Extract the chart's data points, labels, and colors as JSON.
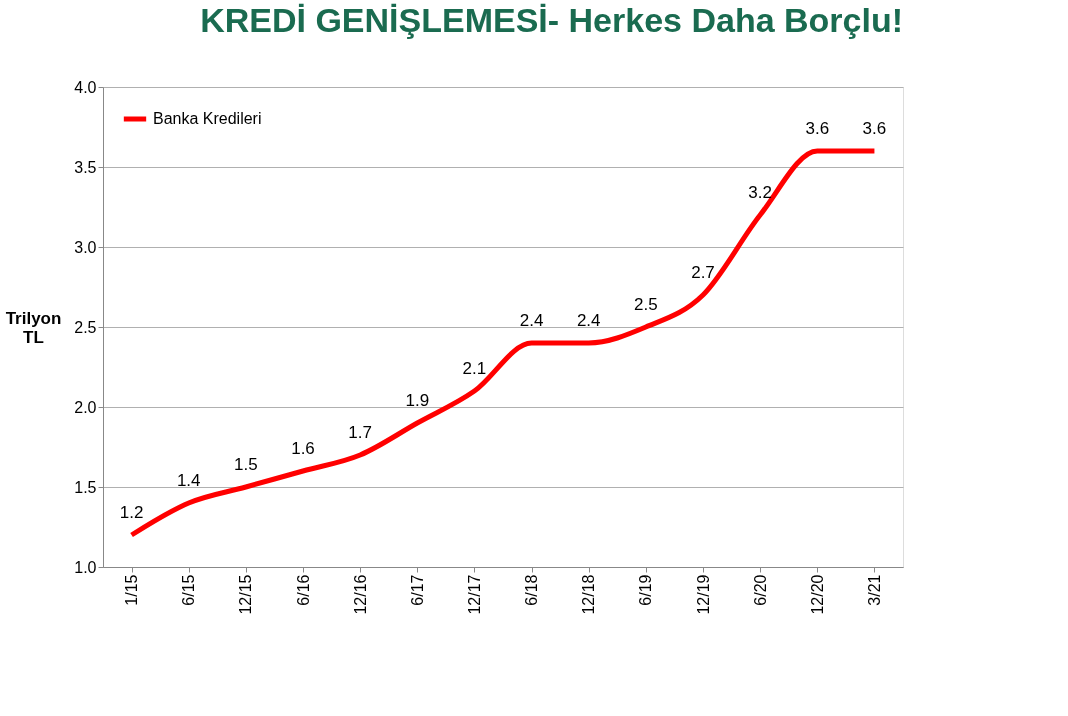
{
  "chart_data": {
    "type": "line",
    "title": "KREDİ GENİŞLEMESİ- Herkes Daha Borçlu!",
    "ylabel": "Trilyon TL",
    "categories": [
      "1/15",
      "6/15",
      "12/15",
      "6/16",
      "12/16",
      "6/17",
      "12/17",
      "6/18",
      "12/18",
      "6/19",
      "12/19",
      "6/20",
      "12/20",
      "3/21"
    ],
    "series": [
      {
        "name": "Banka Kredileri",
        "color": "#ff0000",
        "values": [
          1.2,
          1.4,
          1.5,
          1.6,
          1.7,
          1.9,
          2.1,
          2.4,
          2.4,
          2.5,
          2.7,
          3.2,
          3.6,
          3.6
        ]
      }
    ],
    "ylim": [
      1.0,
      4.0
    ],
    "yticks": [
      {
        "value": 1.0,
        "label": "1.0"
      },
      {
        "value": 1.5,
        "label": "1.5"
      },
      {
        "value": 2.0,
        "label": "2.0"
      },
      {
        "value": 2.5,
        "label": "2.5"
      },
      {
        "value": 3.0,
        "label": "3.0"
      },
      {
        "value": 3.5,
        "label": "3.5"
      },
      {
        "value": 4.0,
        "label": "4.0"
      }
    ],
    "grid": "y",
    "legend": "top left",
    "marker": "none",
    "line_style": "solid",
    "data_labels": true
  }
}
